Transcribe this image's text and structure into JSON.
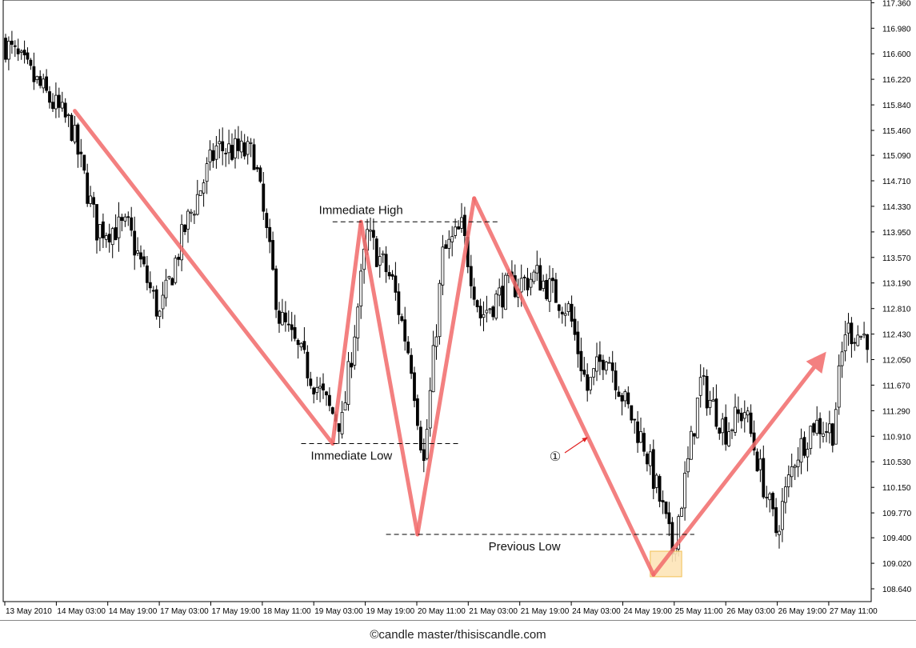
{
  "footer": {
    "credit": "©candle master/thisiscandle.com"
  },
  "chart_data": {
    "type": "candlestick",
    "price_axis": {
      "min": 108.45,
      "max": 117.4,
      "ticks": [
        "117.360",
        "116.980",
        "116.600",
        "116.220",
        "115.840",
        "115.460",
        "115.090",
        "114.710",
        "114.330",
        "113.950",
        "113.570",
        "113.190",
        "112.810",
        "112.430",
        "112.050",
        "111.670",
        "111.290",
        "110.910",
        "110.530",
        "110.150",
        "109.770",
        "109.400",
        "109.020",
        "108.640"
      ]
    },
    "time_axis": {
      "labels": [
        "13 May 2010",
        "14 May 03:00",
        "14 May 19:00",
        "17 May 03:00",
        "17 May 19:00",
        "18 May 11:00",
        "19 May 03:00",
        "19 May 19:00",
        "20 May 11:00",
        "21 May 03:00",
        "21 May 19:00",
        "24 May 03:00",
        "24 May 19:00",
        "25 May 11:00",
        "26 May 03:00",
        "26 May 19:00",
        "27 May 11:00"
      ]
    },
    "grid": false,
    "anchors": [
      {
        "i": 0,
        "p": 116.8
      },
      {
        "i": 12,
        "p": 116.1
      },
      {
        "i": 22,
        "p": 115.5
      },
      {
        "i": 30,
        "p": 114.0
      },
      {
        "i": 40,
        "p": 114.0
      },
      {
        "i": 50,
        "p": 112.7
      },
      {
        "i": 58,
        "p": 114.0
      },
      {
        "i": 68,
        "p": 115.2
      },
      {
        "i": 80,
        "p": 115.1
      },
      {
        "i": 88,
        "p": 112.7
      },
      {
        "i": 96,
        "p": 112.0
      },
      {
        "i": 104,
        "p": 111.3
      },
      {
        "i": 108,
        "p": 111.1
      },
      {
        "i": 116,
        "p": 113.9
      },
      {
        "i": 124,
        "p": 113.2
      },
      {
        "i": 130,
        "p": 112.0
      },
      {
        "i": 134,
        "p": 110.5
      },
      {
        "i": 140,
        "p": 113.6
      },
      {
        "i": 146,
        "p": 114.0
      },
      {
        "i": 152,
        "p": 112.7
      },
      {
        "i": 160,
        "p": 113.1
      },
      {
        "i": 170,
        "p": 113.3
      },
      {
        "i": 180,
        "p": 112.8
      },
      {
        "i": 186,
        "p": 111.6
      },
      {
        "i": 192,
        "p": 112.2
      },
      {
        "i": 198,
        "p": 111.4
      },
      {
        "i": 204,
        "p": 110.8
      },
      {
        "i": 210,
        "p": 109.8
      },
      {
        "i": 213,
        "p": 109.2
      },
      {
        "i": 218,
        "p": 110.5
      },
      {
        "i": 222,
        "p": 111.7
      },
      {
        "i": 230,
        "p": 111.0
      },
      {
        "i": 236,
        "p": 111.3
      },
      {
        "i": 242,
        "p": 110.2
      },
      {
        "i": 246,
        "p": 109.5
      },
      {
        "i": 252,
        "p": 110.6
      },
      {
        "i": 258,
        "p": 111.1
      },
      {
        "i": 264,
        "p": 111.0
      },
      {
        "i": 268,
        "p": 112.5
      },
      {
        "i": 274,
        "p": 112.4
      }
    ],
    "candle_count": 275,
    "pattern_lines": [
      {
        "from": {
          "i": 22,
          "p": 115.75
        },
        "to": {
          "i": 104,
          "p": 110.8
        }
      },
      {
        "from": {
          "i": 104,
          "p": 110.8
        },
        "to": {
          "i": 113,
          "p": 114.1
        }
      },
      {
        "from": {
          "i": 113,
          "p": 114.1
        },
        "to": {
          "i": 131,
          "p": 109.45
        }
      },
      {
        "from": {
          "i": 131,
          "p": 109.45
        },
        "to": {
          "i": 149,
          "p": 114.45
        }
      },
      {
        "from": {
          "i": 149,
          "p": 114.45
        },
        "to": {
          "i": 206,
          "p": 108.85
        }
      },
      {
        "from": {
          "i": 206,
          "p": 108.85
        },
        "to": {
          "i": 259,
          "p": 112.05
        },
        "arrow": true
      }
    ],
    "levels": [
      {
        "label": "Immediate High",
        "price": 114.1,
        "from_i": 104,
        "to_i": 157
      },
      {
        "label": "Immediate Low",
        "price": 110.8,
        "from_i": 94,
        "to_i": 144
      },
      {
        "label": "Previous Low",
        "price": 109.45,
        "from_i": 121,
        "to_i": 219
      }
    ],
    "marker": {
      "label": "①"
    },
    "highlight": {
      "from_i": 205,
      "to_i": 215,
      "p_low": 108.82,
      "p_high": 109.2
    },
    "colors": {
      "pattern_line": "#f26b6b",
      "marker_arrow": "#e02020",
      "highlight_fill": "#fde5b8",
      "highlight_stroke": "#f0b940",
      "candle": "#000000"
    }
  }
}
